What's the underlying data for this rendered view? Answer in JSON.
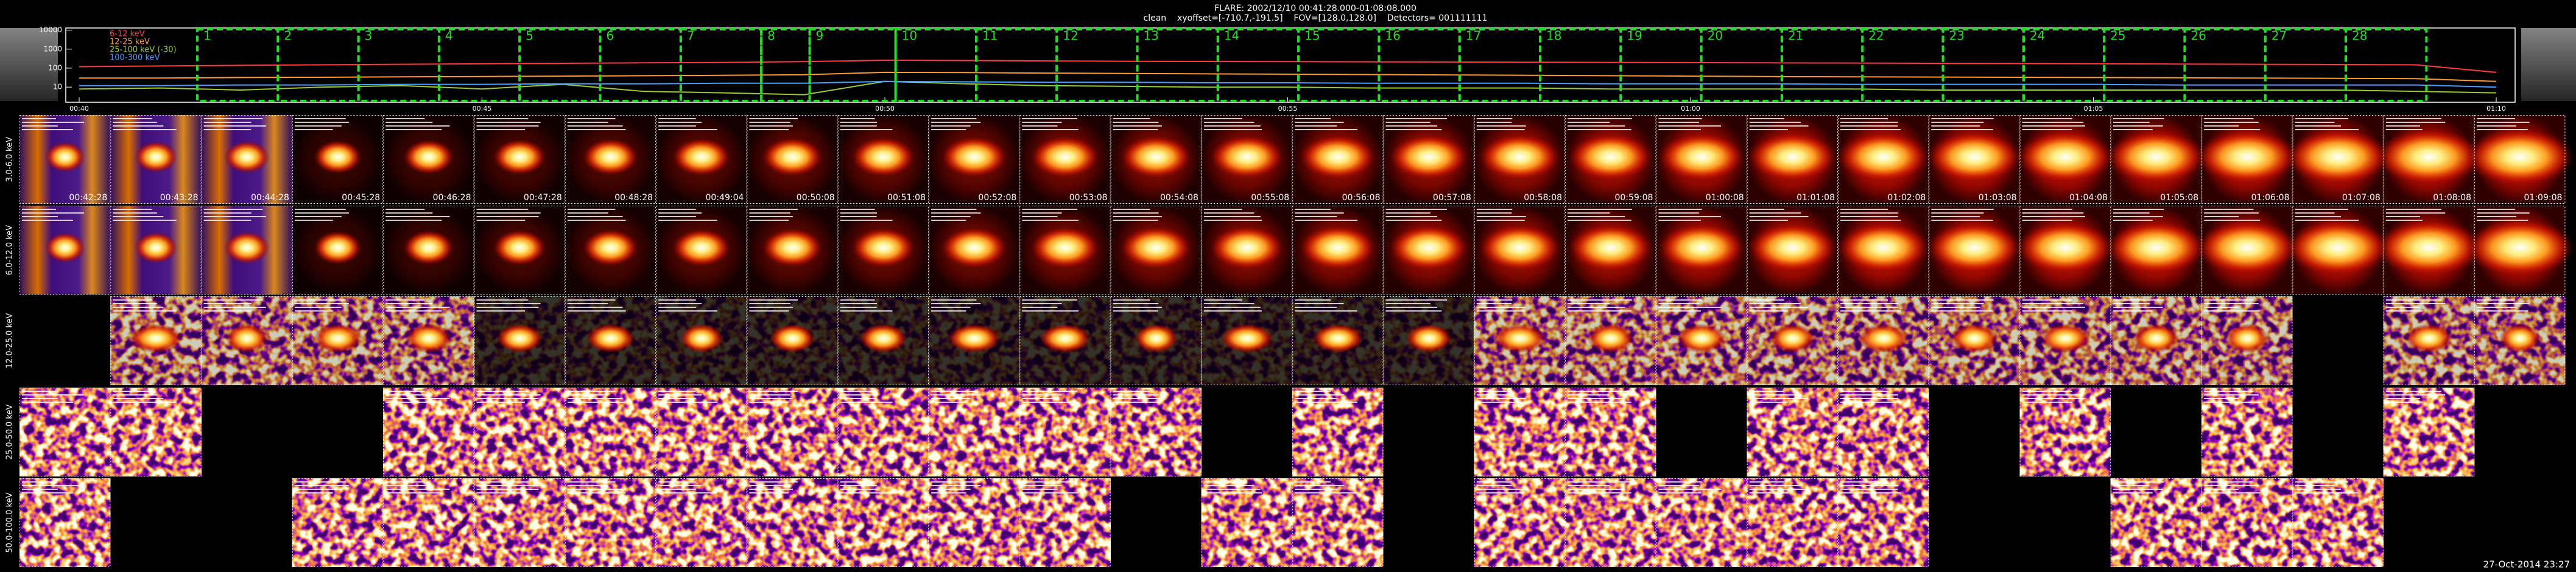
{
  "header": {
    "title": "FLARE: 2002/12/10 00:41:28.000-01:08:08.000",
    "subtitle": "clean    xyoffset=[-710.7,-191.5]    FOV=[128.0,128.0]    Detectors= 001111111"
  },
  "chart_data": {
    "type": "line",
    "log_scale": true,
    "x": [
      "00:40",
      "00:41",
      "00:42",
      "00:43",
      "00:44",
      "00:45",
      "00:46",
      "00:47",
      "00:48",
      "00:49",
      "00:50",
      "00:51",
      "00:52",
      "00:53",
      "00:54",
      "00:55",
      "00:56",
      "00:57",
      "00:58",
      "00:59",
      "01:00",
      "01:01",
      "01:02",
      "01:03",
      "01:04",
      "01:05",
      "01:06",
      "01:07",
      "01:08",
      "01:09",
      "01:10"
    ],
    "series": [
      {
        "name": "6-12 keV",
        "color": "#ff3b3b",
        "values": [
          120,
          130,
          140,
          150,
          160,
          170,
          180,
          190,
          200,
          220,
          260,
          250,
          240,
          230,
          225,
          220,
          215,
          210,
          205,
          200,
          195,
          190,
          185,
          180,
          175,
          170,
          165,
          160,
          155,
          150,
          60
        ]
      },
      {
        "name": "12-25 keV",
        "color": "#ff9a30",
        "values": [
          30,
          30,
          32,
          33,
          35,
          36,
          38,
          40,
          42,
          45,
          60,
          58,
          55,
          52,
          50,
          48,
          46,
          44,
          42,
          40,
          38,
          36,
          35,
          34,
          33,
          32,
          31,
          30,
          29,
          28,
          20
        ]
      },
      {
        "name": "25-100 keV (-30)",
        "color": "#9acd32",
        "values": [
          8,
          9,
          7,
          10,
          12,
          8,
          14,
          6,
          5,
          4,
          20,
          15,
          12,
          11,
          10,
          10,
          9,
          9,
          9,
          8,
          8,
          8,
          8,
          7,
          7,
          7,
          7,
          7,
          7,
          6,
          5
        ]
      },
      {
        "name": "100-300 keV",
        "color": "#4a9cff",
        "values": [
          12,
          12,
          13,
          13,
          14,
          14,
          15,
          15,
          16,
          16,
          20,
          19,
          18,
          18,
          17,
          17,
          16,
          16,
          16,
          15,
          15,
          15,
          14,
          14,
          14,
          14,
          13,
          13,
          13,
          13,
          10
        ]
      }
    ],
    "ylim": [
      1.6,
      13000
    ],
    "yticks": [
      10000,
      1000,
      100,
      10
    ],
    "xticks": [
      "00:40",
      "00:45",
      "00:50",
      "00:55",
      "01:00",
      "01:05",
      "01:10"
    ],
    "intervals": [
      1,
      2,
      3,
      4,
      5,
      6,
      7,
      8,
      9,
      10,
      11,
      12,
      13,
      14,
      15,
      16,
      17,
      18,
      19,
      20,
      21,
      22,
      23,
      24,
      25,
      26,
      27,
      28
    ],
    "interval_color": "#22dd22"
  },
  "images": {
    "times": [
      "00:42:28",
      "00:43:28",
      "00:44:28",
      "00:45:28",
      "00:46:28",
      "00:47:28",
      "00:48:28",
      "00:49:04",
      "00:50:08",
      "00:51:08",
      "00:52:08",
      "00:53:08",
      "00:54:08",
      "00:55:08",
      "00:56:08",
      "00:57:08",
      "00:58:08",
      "00:59:08",
      "01:00:08",
      "01:01:08",
      "01:02:08",
      "01:03:08",
      "01:04:08",
      "01:05:08",
      "01:06:08",
      "01:07:08",
      "01:08:08",
      "01:09:08"
    ],
    "rows": [
      {
        "energy": "3.0-6.0 keV",
        "columns": [
          0,
          1,
          2,
          3,
          4,
          5,
          6,
          7,
          8,
          9,
          10,
          11,
          12,
          13,
          14,
          15,
          16,
          17,
          18,
          19,
          20,
          21,
          22,
          23,
          24,
          25,
          26,
          27
        ]
      },
      {
        "energy": "6.0-12.0 keV",
        "columns": [
          0,
          1,
          2,
          3,
          4,
          5,
          6,
          7,
          8,
          9,
          10,
          11,
          12,
          13,
          14,
          15,
          16,
          17,
          18,
          19,
          20,
          21,
          22,
          23,
          24,
          25,
          26,
          27
        ]
      },
      {
        "energy": "12.0-25.0 keV",
        "columns": [
          1,
          2,
          3,
          4,
          5,
          6,
          7,
          8,
          9,
          10,
          11,
          12,
          13,
          14,
          15,
          16,
          17,
          18,
          19,
          20,
          21,
          22,
          23,
          24,
          26,
          27
        ]
      },
      {
        "energy": "25.0-50.0 keV",
        "columns": [
          0,
          1,
          4,
          5,
          6,
          7,
          8,
          9,
          10,
          11,
          12,
          14,
          16,
          17,
          19,
          20,
          22,
          24,
          26
        ]
      },
      {
        "energy": "50.0-100.0 keV",
        "columns": [
          0,
          3,
          4,
          5,
          6,
          7,
          8,
          9,
          10,
          11,
          13,
          14,
          16,
          17,
          18,
          19,
          20,
          23,
          24,
          25
        ]
      }
    ]
  },
  "footer": {
    "date": "27-Oct-2014 23:27"
  }
}
